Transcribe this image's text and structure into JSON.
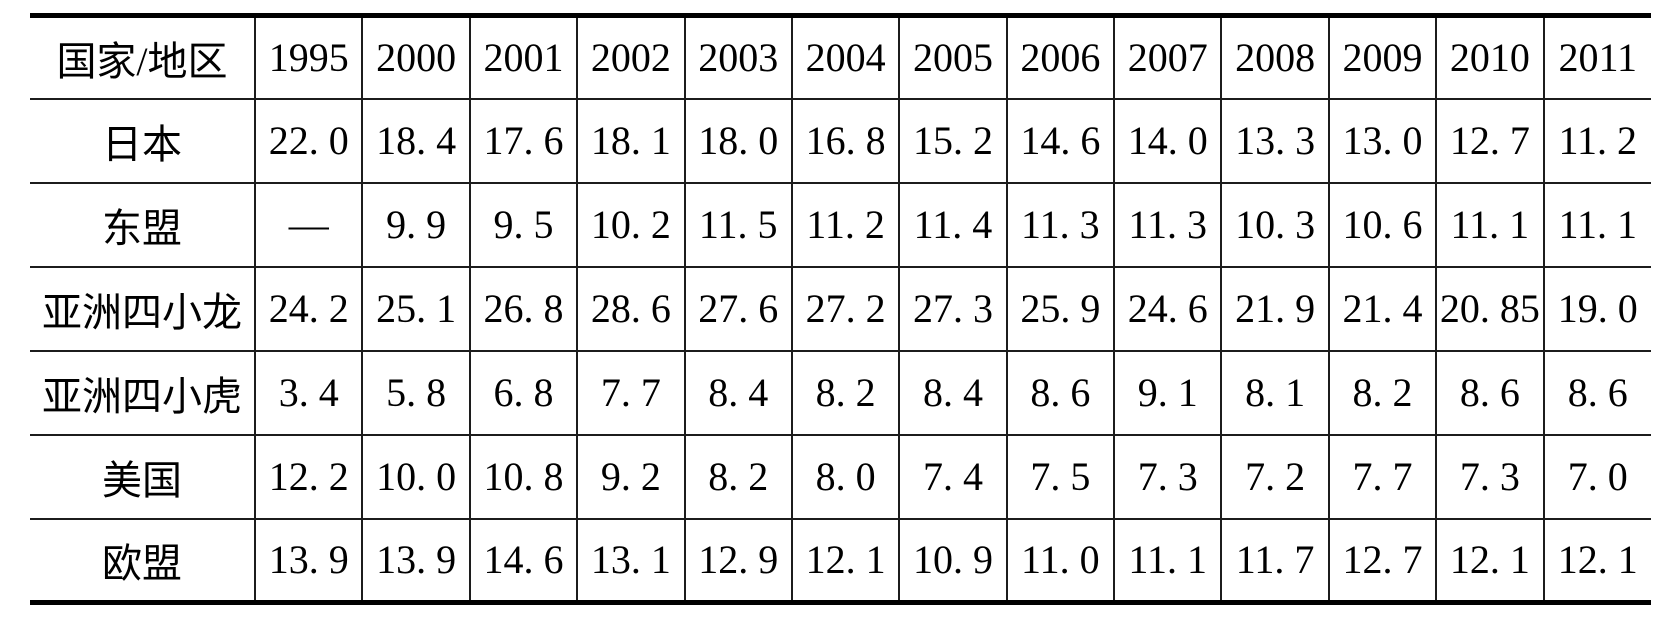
{
  "table": {
    "header": [
      "国家/地区",
      "1995",
      "2000",
      "2001",
      "2002",
      "2003",
      "2004",
      "2005",
      "2006",
      "2007",
      "2008",
      "2009",
      "2010",
      "2011"
    ],
    "rows": [
      {
        "label": "日本",
        "values": [
          "22. 0",
          "18. 4",
          "17. 6",
          "18. 1",
          "18. 0",
          "16. 8",
          "15. 2",
          "14. 6",
          "14. 0",
          "13. 3",
          "13. 0",
          "12. 7",
          "11. 2"
        ]
      },
      {
        "label": "东盟",
        "values": [
          "—",
          "9. 9",
          "9. 5",
          "10. 2",
          "11. 5",
          "11. 2",
          "11. 4",
          "11. 3",
          "11. 3",
          "10. 3",
          "10. 6",
          "11. 1",
          "11. 1"
        ]
      },
      {
        "label": "亚洲四小龙",
        "values": [
          "24. 2",
          "25. 1",
          "26. 8",
          "28. 6",
          "27. 6",
          "27. 2",
          "27. 3",
          "25. 9",
          "24. 6",
          "21. 9",
          "21. 4",
          "20. 85",
          "19. 0"
        ]
      },
      {
        "label": "亚洲四小虎",
        "values": [
          "3. 4",
          "5. 8",
          "6. 8",
          "7. 7",
          "8. 4",
          "8. 2",
          "8. 4",
          "8. 6",
          "9. 1",
          "8. 1",
          "8. 2",
          "8. 6",
          "8. 6"
        ]
      },
      {
        "label": "美国",
        "values": [
          "12. 2",
          "10. 0",
          "10. 8",
          "9. 2",
          "8. 2",
          "8. 0",
          "7. 4",
          "7. 5",
          "7. 3",
          "7. 2",
          "7. 7",
          "7. 3",
          "7. 0"
        ]
      },
      {
        "label": "欧盟",
        "values": [
          "13. 9",
          "13. 9",
          "14. 6",
          "13. 1",
          "12. 9",
          "12. 1",
          "10. 9",
          "11. 0",
          "11. 1",
          "11. 7",
          "12. 7",
          "12. 1",
          "12. 1"
        ]
      }
    ]
  },
  "chart_data": {
    "type": "table",
    "title": "",
    "corner_label": "国家/地区",
    "categories": [
      "1995",
      "2000",
      "2001",
      "2002",
      "2003",
      "2004",
      "2005",
      "2006",
      "2007",
      "2008",
      "2009",
      "2010",
      "2011"
    ],
    "series": [
      {
        "name": "日本",
        "values": [
          22.0,
          18.4,
          17.6,
          18.1,
          18.0,
          16.8,
          15.2,
          14.6,
          14.0,
          13.3,
          13.0,
          12.7,
          11.2
        ]
      },
      {
        "name": "东盟",
        "values": [
          null,
          9.9,
          9.5,
          10.2,
          11.5,
          11.2,
          11.4,
          11.3,
          11.3,
          10.3,
          10.6,
          11.1,
          11.1
        ]
      },
      {
        "name": "亚洲四小龙",
        "values": [
          24.2,
          25.1,
          26.8,
          28.6,
          27.6,
          27.2,
          27.3,
          25.9,
          24.6,
          21.9,
          21.4,
          20.85,
          19.0
        ]
      },
      {
        "name": "亚洲四小虎",
        "values": [
          3.4,
          5.8,
          6.8,
          7.7,
          8.4,
          8.2,
          8.4,
          8.6,
          9.1,
          8.1,
          8.2,
          8.6,
          8.6
        ]
      },
      {
        "name": "美国",
        "values": [
          12.2,
          10.0,
          10.8,
          9.2,
          8.2,
          8.0,
          7.4,
          7.5,
          7.3,
          7.2,
          7.7,
          7.3,
          7.0
        ]
      },
      {
        "name": "欧盟",
        "values": [
          13.9,
          13.9,
          14.6,
          13.1,
          12.9,
          12.1,
          10.9,
          11.0,
          11.1,
          11.7,
          12.7,
          12.1,
          12.1
        ]
      }
    ],
    "missing_value_marker": "—",
    "layout": {
      "grid": "inner lines thin, top and bottom rules thick",
      "outer_vertical_borders": false
    }
  },
  "colors": {
    "background": "#ffffff",
    "text": "#000000",
    "border": "#1c1c1c",
    "rule": "#000000"
  }
}
